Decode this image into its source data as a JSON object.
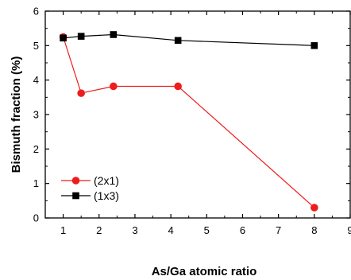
{
  "chart_data": {
    "type": "line",
    "xlabel": "As/Ga atomic ratio",
    "ylabel": "Bismuth fraction (%)",
    "xlim": [
      0.5,
      9
    ],
    "ylim": [
      0,
      6
    ],
    "x_ticks": [
      1,
      2,
      3,
      4,
      5,
      6,
      7,
      8,
      9
    ],
    "y_ticks": [
      0,
      1,
      2,
      3,
      4,
      5,
      6
    ],
    "legend_position": "bottom-left",
    "grid": false,
    "series": [
      {
        "name": "(2x1)",
        "color": "#ee1c1c",
        "marker": "circle",
        "x": [
          1,
          1.5,
          2.4,
          4.2,
          8
        ],
        "y": [
          5.25,
          3.62,
          3.82,
          3.82,
          0.3
        ]
      },
      {
        "name": "(1x3)",
        "color": "#000000",
        "marker": "square",
        "x": [
          1,
          1.5,
          2.4,
          4.2,
          8
        ],
        "y": [
          5.22,
          5.27,
          5.32,
          5.15,
          5.0
        ]
      }
    ]
  }
}
